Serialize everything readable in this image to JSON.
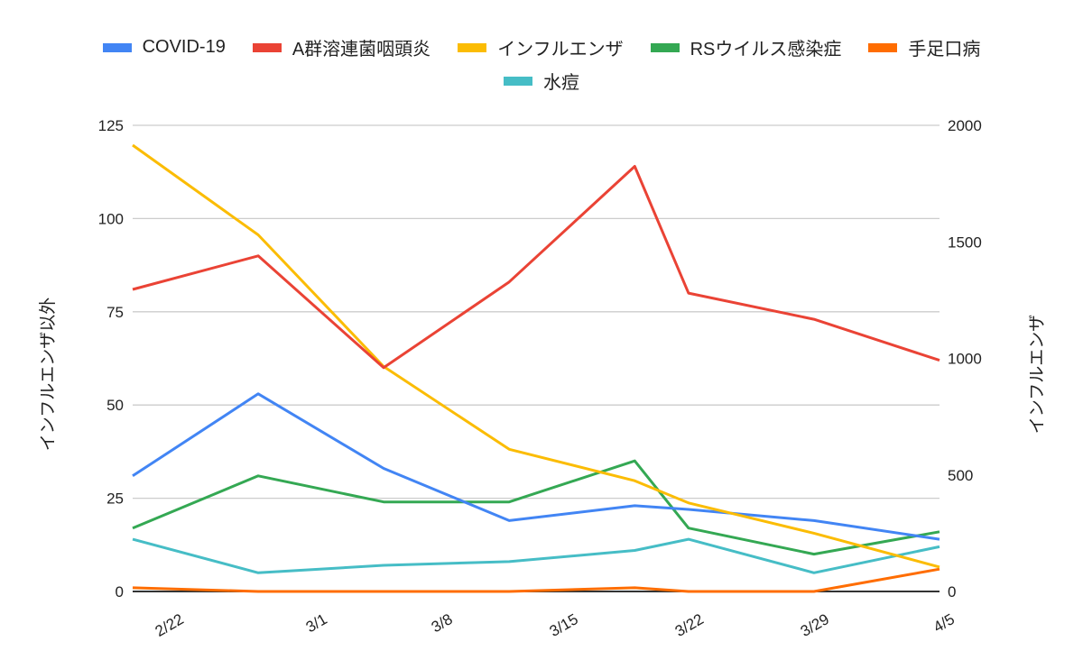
{
  "chart_data": {
    "type": "line",
    "title": "",
    "x_format": "M/D",
    "x": [
      "2/20",
      "2/27",
      "3/5",
      "3/12",
      "3/19",
      "3/22",
      "3/29",
      "4/5"
    ],
    "x_ticks": [
      "2/22",
      "3/1",
      "3/8",
      "3/15",
      "3/22",
      "3/29",
      "4/5"
    ],
    "xlim": [
      "2/20",
      "4/5"
    ],
    "y_left": {
      "label": "インフルエンザ以外",
      "lim": [
        0,
        125
      ],
      "ticks": [
        0,
        25,
        50,
        75,
        100,
        125
      ]
    },
    "y_right": {
      "label": "インフルエンザ",
      "lim": [
        0,
        2000
      ],
      "ticks": [
        0,
        500,
        1000,
        1500,
        2000
      ]
    },
    "grid": true,
    "legend_position": "top",
    "series": [
      {
        "name": "COVID-19",
        "color": "#4285f4",
        "axis": "left",
        "values": [
          31,
          53,
          33,
          19,
          23,
          22,
          19,
          14
        ]
      },
      {
        "name": "A群溶連菌咽頭炎",
        "color": "#ea4335",
        "axis": "left",
        "values": [
          81,
          90,
          60,
          83,
          114,
          80,
          73,
          62
        ]
      },
      {
        "name": "インフルエンザ",
        "color": "#fbbc04",
        "axis": "right",
        "values": [
          1915,
          1530,
          965,
          610,
          475,
          380,
          250,
          105
        ]
      },
      {
        "name": "RSウイルス感染症",
        "color": "#34a853",
        "axis": "left",
        "values": [
          17,
          31,
          24,
          24,
          35,
          17,
          10,
          16
        ]
      },
      {
        "name": "手足口病",
        "color": "#ff6d01",
        "axis": "left",
        "values": [
          1,
          0,
          0,
          0,
          1,
          0,
          0,
          6
        ]
      },
      {
        "name": "水痘",
        "color": "#46bdc6",
        "axis": "left",
        "values": [
          14,
          5,
          7,
          8,
          11,
          14,
          5,
          12
        ]
      }
    ]
  }
}
